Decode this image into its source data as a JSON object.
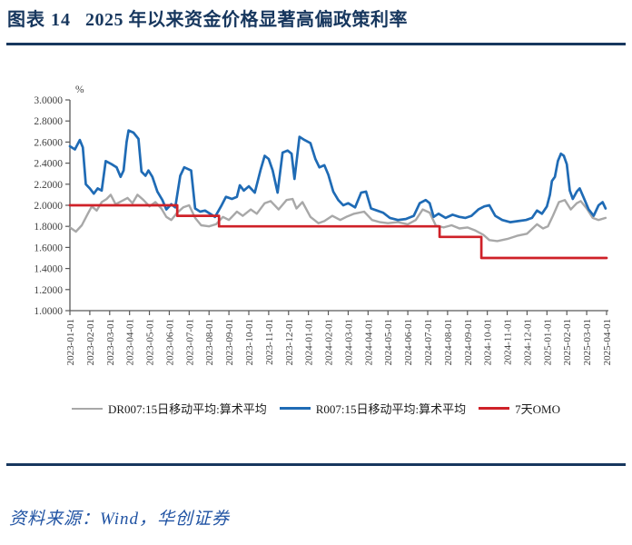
{
  "header": {
    "figure_label": "图表 14",
    "title": "2025 年以来资金价格显著高偏政策利率"
  },
  "footer": {
    "source": "资料来源：Wind，华创证券"
  },
  "colors": {
    "title_navy": "#17375E",
    "dr007_gray": "#A8A8A8",
    "r007_blue": "#1F6BB5",
    "omo_red": "#CF2128",
    "axis": "#595959",
    "tick_label": "#404040",
    "source_blue": "#2053A3"
  },
  "chart_data": {
    "type": "line",
    "title": "",
    "unit_label": "%",
    "xlabel": "",
    "ylabel": "",
    "ylim": [
      1.0,
      3.0
    ],
    "grid": false,
    "legend_position": "bottom",
    "x_unit_note": "x values are month offsets from 2023-01-01 (0 = 2023-01-01, 27 = 2025-04-01)",
    "y_ticks": [
      "3.0000",
      "2.8000",
      "2.6000",
      "2.4000",
      "2.2000",
      "2.0000",
      "1.8000",
      "1.6000",
      "1.4000",
      "1.2000",
      "1.0000"
    ],
    "x_tick_labels": [
      "2023-01-01",
      "2023-02-01",
      "2023-03-01",
      "2023-04-01",
      "2023-05-01",
      "2023-06-01",
      "2023-07-01",
      "2023-08-01",
      "2023-09-01",
      "2023-10-01",
      "2023-11-01",
      "2023-12-01",
      "2024-01-01",
      "2024-02-01",
      "2024-03-01",
      "2024-04-01",
      "2024-05-01",
      "2024-06-01",
      "2024-07-01",
      "2024-08-01",
      "2024-09-01",
      "2024-10-01",
      "2024-11-01",
      "2024-12-01",
      "2025-01-01",
      "2025-02-01",
      "2025-03-01",
      "2025-04-01"
    ],
    "series": [
      {
        "name": "DR007:15日移动平均:算术平均",
        "color": "#A8A8A8",
        "width": 2.4,
        "points": [
          [
            0,
            1.79
          ],
          [
            0.3,
            1.75
          ],
          [
            0.6,
            1.81
          ],
          [
            0.9,
            1.92
          ],
          [
            1.1,
            1.99
          ],
          [
            1.35,
            1.95
          ],
          [
            1.6,
            2.03
          ],
          [
            1.85,
            2.06
          ],
          [
            2.05,
            2.1
          ],
          [
            2.3,
            2.01
          ],
          [
            2.6,
            2.04
          ],
          [
            2.9,
            2.07
          ],
          [
            3.15,
            2.02
          ],
          [
            3.4,
            2.1
          ],
          [
            3.7,
            2.05
          ],
          [
            4,
            1.99
          ],
          [
            4.3,
            2.03
          ],
          [
            4.6,
            1.97
          ],
          [
            4.85,
            1.89
          ],
          [
            5.1,
            1.86
          ],
          [
            5.4,
            1.93
          ],
          [
            5.7,
            1.98
          ],
          [
            6,
            2
          ],
          [
            6.3,
            1.88
          ],
          [
            6.6,
            1.81
          ],
          [
            7,
            1.8
          ],
          [
            7.35,
            1.82
          ],
          [
            7.7,
            1.89
          ],
          [
            8,
            1.86
          ],
          [
            8.4,
            1.94
          ],
          [
            8.7,
            1.9
          ],
          [
            9.1,
            1.96
          ],
          [
            9.4,
            1.92
          ],
          [
            9.8,
            2.02
          ],
          [
            10.1,
            2.04
          ],
          [
            10.5,
            1.96
          ],
          [
            10.9,
            2.05
          ],
          [
            11.2,
            2.06
          ],
          [
            11.4,
            1.97
          ],
          [
            11.7,
            2.03
          ],
          [
            12.1,
            1.89
          ],
          [
            12.5,
            1.83
          ],
          [
            12.8,
            1.85
          ],
          [
            13.2,
            1.9
          ],
          [
            13.6,
            1.86
          ],
          [
            13.9,
            1.89
          ],
          [
            14.3,
            1.92
          ],
          [
            14.8,
            1.94
          ],
          [
            15.2,
            1.86
          ],
          [
            15.6,
            1.84
          ],
          [
            16,
            1.83
          ],
          [
            16.5,
            1.84
          ],
          [
            17,
            1.82
          ],
          [
            17.4,
            1.86
          ],
          [
            17.75,
            1.96
          ],
          [
            18.1,
            1.93
          ],
          [
            18.4,
            1.81
          ],
          [
            18.8,
            1.79
          ],
          [
            19.2,
            1.81
          ],
          [
            19.6,
            1.78
          ],
          [
            20,
            1.79
          ],
          [
            20.4,
            1.76
          ],
          [
            20.8,
            1.72
          ],
          [
            21.1,
            1.67
          ],
          [
            21.5,
            1.66
          ],
          [
            22,
            1.68
          ],
          [
            22.5,
            1.71
          ],
          [
            23,
            1.73
          ],
          [
            23.5,
            1.82
          ],
          [
            23.8,
            1.78
          ],
          [
            24.05,
            1.8
          ],
          [
            24.3,
            1.9
          ],
          [
            24.6,
            2.03
          ],
          [
            24.9,
            2.05
          ],
          [
            25.2,
            1.96
          ],
          [
            25.5,
            2.02
          ],
          [
            25.7,
            2.04
          ],
          [
            26,
            1.97
          ],
          [
            26.3,
            1.88
          ],
          [
            26.6,
            1.86
          ],
          [
            26.95,
            1.88
          ]
        ]
      },
      {
        "name": "R007:15日移动平均:算术平均",
        "color": "#1F6BB5",
        "width": 2.7,
        "points": [
          [
            0,
            2.56
          ],
          [
            0.25,
            2.53
          ],
          [
            0.5,
            2.62
          ],
          [
            0.65,
            2.55
          ],
          [
            0.8,
            2.2
          ],
          [
            1,
            2.16
          ],
          [
            1.2,
            2.11
          ],
          [
            1.4,
            2.16
          ],
          [
            1.6,
            2.14
          ],
          [
            1.8,
            2.42
          ],
          [
            2.1,
            2.39
          ],
          [
            2.35,
            2.36
          ],
          [
            2.55,
            2.27
          ],
          [
            2.7,
            2.33
          ],
          [
            2.85,
            2.6
          ],
          [
            2.95,
            2.71
          ],
          [
            3.2,
            2.69
          ],
          [
            3.45,
            2.63
          ],
          [
            3.6,
            2.32
          ],
          [
            3.8,
            2.28
          ],
          [
            3.95,
            2.33
          ],
          [
            4.15,
            2.27
          ],
          [
            4.4,
            2.13
          ],
          [
            4.65,
            2.05
          ],
          [
            4.85,
            1.96
          ],
          [
            5.1,
            2.01
          ],
          [
            5.3,
            1.98
          ],
          [
            5.55,
            2.28
          ],
          [
            5.75,
            2.36
          ],
          [
            6.1,
            2.33
          ],
          [
            6.3,
            1.97
          ],
          [
            6.55,
            1.94
          ],
          [
            6.8,
            1.95
          ],
          [
            7.05,
            1.92
          ],
          [
            7.3,
            1.89
          ],
          [
            7.6,
            1.99
          ],
          [
            7.85,
            2.08
          ],
          [
            8.15,
            2.06
          ],
          [
            8.4,
            2.08
          ],
          [
            8.55,
            2.19
          ],
          [
            8.75,
            2.14
          ],
          [
            9,
            2.18
          ],
          [
            9.3,
            2.12
          ],
          [
            9.6,
            2.34
          ],
          [
            9.8,
            2.47
          ],
          [
            10,
            2.44
          ],
          [
            10.2,
            2.33
          ],
          [
            10.45,
            2.12
          ],
          [
            10.7,
            2.5
          ],
          [
            10.95,
            2.52
          ],
          [
            11.15,
            2.49
          ],
          [
            11.3,
            2.25
          ],
          [
            11.55,
            2.65
          ],
          [
            11.8,
            2.62
          ],
          [
            12.1,
            2.59
          ],
          [
            12.35,
            2.44
          ],
          [
            12.55,
            2.36
          ],
          [
            12.8,
            2.38
          ],
          [
            13,
            2.29
          ],
          [
            13.25,
            2.13
          ],
          [
            13.5,
            2.05
          ],
          [
            13.75,
            2
          ],
          [
            14,
            2.02
          ],
          [
            14.35,
            1.98
          ],
          [
            14.65,
            2.12
          ],
          [
            14.9,
            2.13
          ],
          [
            15.15,
            1.97
          ],
          [
            15.45,
            1.95
          ],
          [
            15.75,
            1.93
          ],
          [
            16.1,
            1.88
          ],
          [
            16.5,
            1.86
          ],
          [
            16.9,
            1.87
          ],
          [
            17.3,
            1.9
          ],
          [
            17.6,
            2.02
          ],
          [
            17.9,
            2.05
          ],
          [
            18.1,
            2.02
          ],
          [
            18.3,
            1.89
          ],
          [
            18.55,
            1.92
          ],
          [
            18.9,
            1.88
          ],
          [
            19.25,
            1.91
          ],
          [
            19.6,
            1.89
          ],
          [
            19.9,
            1.88
          ],
          [
            20.2,
            1.9
          ],
          [
            20.55,
            1.96
          ],
          [
            20.85,
            1.99
          ],
          [
            21.1,
            2
          ],
          [
            21.4,
            1.9
          ],
          [
            21.75,
            1.86
          ],
          [
            22.15,
            1.84
          ],
          [
            22.55,
            1.85
          ],
          [
            22.95,
            1.86
          ],
          [
            23.25,
            1.88
          ],
          [
            23.5,
            1.95
          ],
          [
            23.75,
            1.92
          ],
          [
            24,
            1.99
          ],
          [
            24.15,
            2.1
          ],
          [
            24.25,
            2.23
          ],
          [
            24.4,
            2.27
          ],
          [
            24.55,
            2.42
          ],
          [
            24.7,
            2.49
          ],
          [
            24.85,
            2.47
          ],
          [
            25,
            2.39
          ],
          [
            25.15,
            2.14
          ],
          [
            25.3,
            2.06
          ],
          [
            25.5,
            2.13
          ],
          [
            25.65,
            2.16
          ],
          [
            25.9,
            2.05
          ],
          [
            26.1,
            1.96
          ],
          [
            26.35,
            1.9
          ],
          [
            26.6,
            2
          ],
          [
            26.8,
            2.03
          ],
          [
            26.95,
            1.97
          ]
        ]
      },
      {
        "name": "7天OMO",
        "color": "#CF2128",
        "width": 2.7,
        "points": [
          [
            0,
            2.0
          ],
          [
            5.4,
            2.0
          ],
          [
            5.4,
            1.9
          ],
          [
            7.5,
            1.9
          ],
          [
            7.5,
            1.8
          ],
          [
            18.6,
            1.8
          ],
          [
            18.6,
            1.7
          ],
          [
            20.7,
            1.7
          ],
          [
            20.7,
            1.5
          ],
          [
            27.0,
            1.5
          ]
        ]
      }
    ]
  }
}
